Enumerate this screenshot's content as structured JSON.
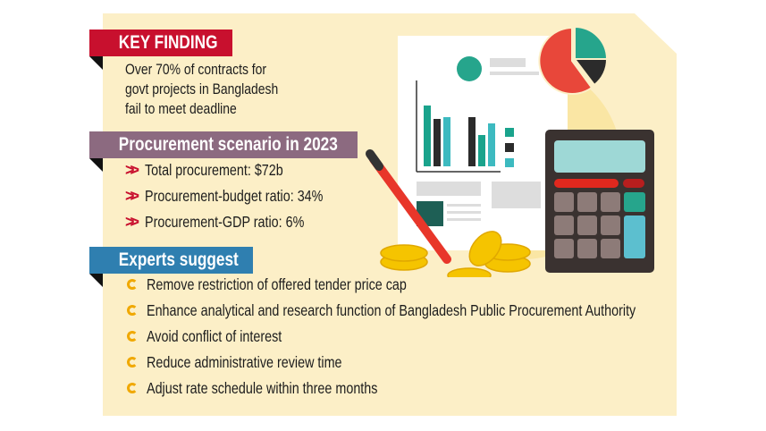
{
  "key_finding": {
    "title": "KEY FINDING",
    "lines": [
      "Over 70% of contracts for",
      "govt projects in Bangladesh",
      "fail to meet deadline"
    ]
  },
  "procurement": {
    "title": "Procurement scenario in 2023",
    "items": [
      "Total procurement: $72b",
      "Procurement-budget ratio: 34%",
      "Procurement-GDP ratio: 6%"
    ]
  },
  "experts": {
    "title": "Experts suggest",
    "items": [
      "Remove restriction of offered tender price cap",
      "Enhance analytical and research function of Bangladesh Public Procurement Authority",
      "Avoid conflict of interest",
      "Reduce administrative review time",
      "Adjust rate schedule within three months"
    ]
  },
  "colors": {
    "background": "#fcefc7",
    "key_finding_bar": "#c8102e",
    "procurement_bar": "#8c6a80",
    "experts_bar": "#2f7fb0",
    "chevron": "#c8102e",
    "bullet": "#f0a800"
  },
  "icons": [
    "chevron-double-right",
    "circle-arrow-bullet",
    "document-chart-illustration",
    "pie-chart-illustration",
    "calculator-illustration",
    "pen-illustration",
    "coins-illustration"
  ]
}
